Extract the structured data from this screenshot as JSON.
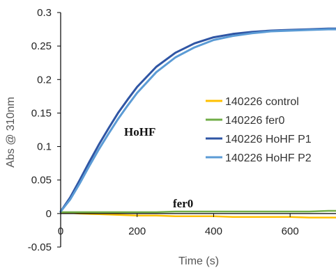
{
  "chart_data": {
    "type": "line",
    "title": "",
    "xlabel": "Time (s)",
    "ylabel": "Abs @ 310nm",
    "xlim": [
      0,
      720
    ],
    "ylim": [
      -0.05,
      0.3
    ],
    "x_ticks": [
      0,
      200,
      400,
      600
    ],
    "x_tick_labels": [
      "0",
      "200",
      "400",
      "600"
    ],
    "y_ticks": [
      -0.05,
      0,
      0.05,
      0.1,
      0.15,
      0.2,
      0.25,
      0.3
    ],
    "y_tick_labels": [
      "-0.05",
      "0",
      "0.05",
      "0.1",
      "0.15",
      "0.2",
      "0.25",
      "0.3"
    ],
    "grid": false,
    "legend": {
      "placement": "right"
    },
    "annotations": [
      "HoHF",
      "fer0"
    ],
    "series": [
      {
        "name": "140226 control",
        "color": "#FFC000",
        "x": [
          0,
          50,
          100,
          150,
          200,
          250,
          300,
          350,
          400,
          450,
          500,
          550,
          600,
          650,
          700,
          720
        ],
        "y": [
          0.002,
          0.0,
          -0.001,
          -0.002,
          -0.003,
          -0.003,
          -0.004,
          -0.004,
          -0.004,
          -0.005,
          -0.005,
          -0.005,
          -0.005,
          -0.006,
          -0.006,
          -0.006
        ]
      },
      {
        "name": "140226 fer0",
        "color": "#70AD47",
        "x": [
          0,
          50,
          100,
          150,
          200,
          250,
          300,
          350,
          400,
          450,
          500,
          550,
          600,
          650,
          700,
          720
        ],
        "y": [
          0.002,
          0.002,
          0.002,
          0.002,
          0.002,
          0.002,
          0.003,
          0.003,
          0.003,
          0.003,
          0.003,
          0.003,
          0.003,
          0.003,
          0.004,
          0.004
        ]
      },
      {
        "name": "140226 HoHF P1",
        "color": "#2F55A4",
        "x": [
          0,
          25,
          50,
          75,
          100,
          125,
          150,
          175,
          200,
          250,
          300,
          350,
          400,
          450,
          500,
          550,
          600,
          650,
          700,
          720
        ],
        "y": [
          0.003,
          0.024,
          0.05,
          0.077,
          0.103,
          0.127,
          0.15,
          0.17,
          0.189,
          0.219,
          0.24,
          0.254,
          0.263,
          0.268,
          0.271,
          0.273,
          0.274,
          0.275,
          0.276,
          0.276
        ]
      },
      {
        "name": "140226 HoHF P2",
        "color": "#5B9BD5",
        "x": [
          0,
          25,
          50,
          75,
          100,
          125,
          150,
          175,
          200,
          250,
          300,
          350,
          400,
          450,
          500,
          550,
          600,
          650,
          700,
          720
        ],
        "y": [
          0.003,
          0.021,
          0.045,
          0.071,
          0.096,
          0.119,
          0.141,
          0.161,
          0.18,
          0.211,
          0.233,
          0.248,
          0.259,
          0.265,
          0.269,
          0.272,
          0.273,
          0.274,
          0.275,
          0.275
        ]
      }
    ]
  }
}
